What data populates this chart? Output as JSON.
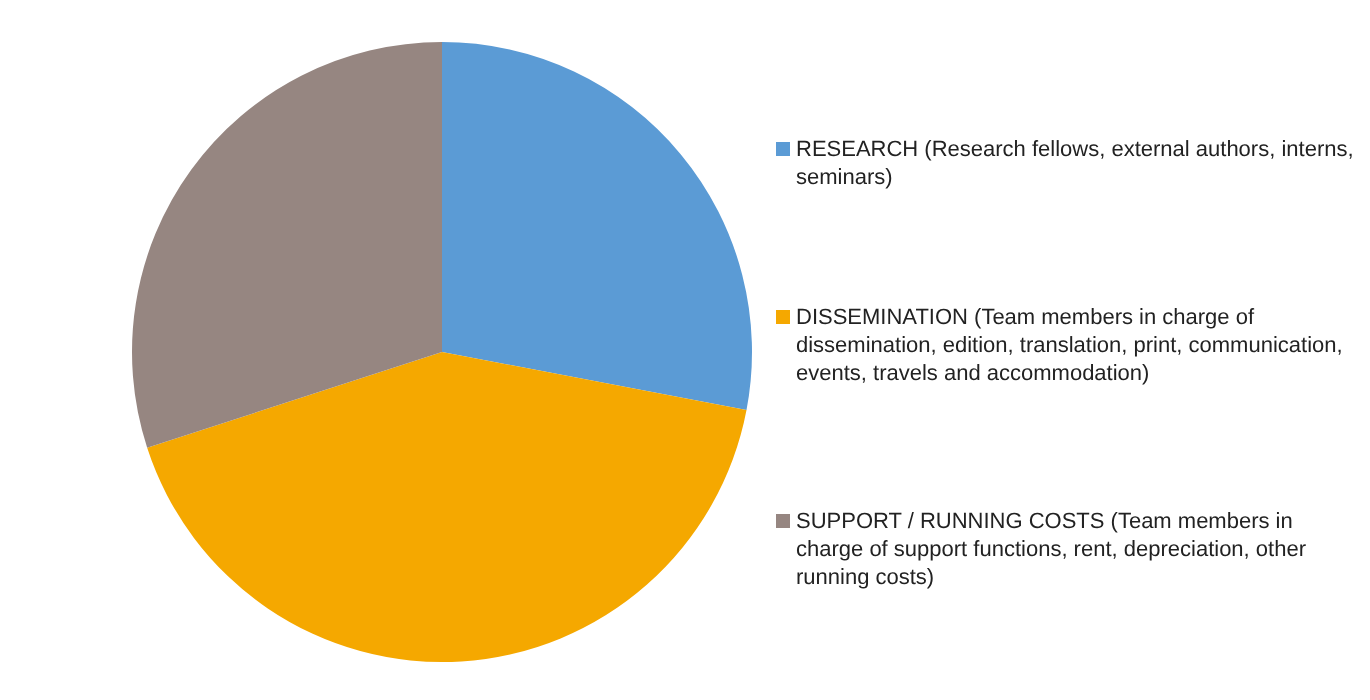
{
  "chart_data": {
    "type": "pie",
    "categories": [
      "RESEARCH (Research fellows, external authors, interns, seminars)",
      "DISSEMINATION (Team members in charge of dissemination, edition, translation, print, communication, events, travels and accommodation)",
      "SUPPORT / RUNNING COSTS (Team members in charge of support functions, rent, depreciation, other running costs)"
    ],
    "values": [
      28,
      42,
      30
    ],
    "colors": [
      "#5b9bd5",
      "#f5a800",
      "#968681"
    ],
    "legend": "right"
  }
}
